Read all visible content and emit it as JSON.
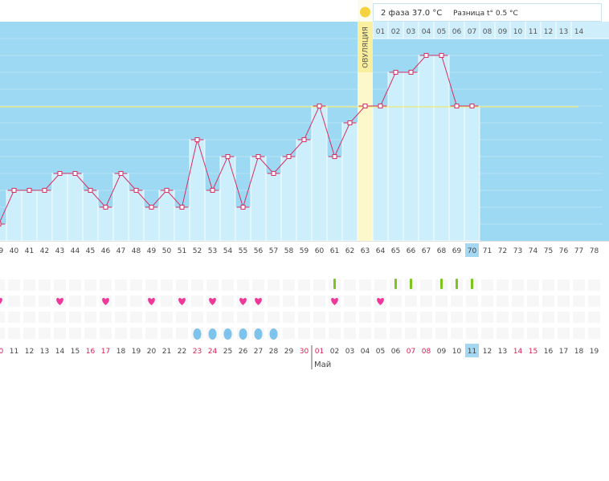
{
  "header": {
    "phase_text": "2 фаза 37.0 °C",
    "diff_text": "Разница t° 0.5 °C",
    "sun_color": "#f5d23f"
  },
  "ovulation": {
    "label": "ОВУЛЯЦИЯ",
    "column_index": 24
  },
  "month_label": "Май",
  "colors": {
    "sky": "#9dd9f3",
    "bar": "#cdeffc",
    "bar_edge": "#ffffff",
    "line": "#d62e62",
    "coverline": "#ecec7a",
    "ovulation": "#f9ef9f",
    "ovulation_light": "#fdf7cc",
    "heart": "#f0379a",
    "green": "#7dc41f",
    "drop": "#7ec3ec",
    "red_date": "#d81e55",
    "highlight": "#a3d7f2"
  },
  "chart_data": {
    "type": "line",
    "title": "",
    "x": [
      "39",
      "40",
      "41",
      "42",
      "43",
      "44",
      "45",
      "46",
      "47",
      "48",
      "49",
      "50",
      "51",
      "52",
      "53",
      "54",
      "55",
      "56",
      "57",
      "58",
      "59",
      "60",
      "61",
      "62",
      "63",
      "64",
      "65",
      "66",
      "67",
      "68",
      "69",
      "70",
      "71",
      "72",
      "73",
      "74",
      "75",
      "76",
      "77",
      "78"
    ],
    "values": [
      1,
      3,
      3,
      3,
      4,
      4,
      3,
      2,
      4,
      3,
      2,
      3,
      2,
      6,
      3,
      5,
      2,
      5,
      4,
      5,
      6,
      8,
      5,
      7,
      8,
      8,
      10,
      10,
      11,
      11,
      8,
      8,
      null,
      null,
      null,
      null,
      null,
      null,
      null,
      null
    ],
    "ylim": [
      0,
      13.3
    ],
    "grid": true,
    "coverline_value": 8,
    "highlight_index": 31,
    "top_numbers": [
      "01",
      "02",
      "03",
      "04",
      "05",
      "06",
      "07",
      "08",
      "09",
      "10",
      "11",
      "12",
      "13",
      "14"
    ],
    "dates": [
      {
        "label": "10",
        "red": true
      },
      {
        "label": "11",
        "red": false
      },
      {
        "label": "12",
        "red": false
      },
      {
        "label": "13",
        "red": false
      },
      {
        "label": "14",
        "red": false
      },
      {
        "label": "15",
        "red": false
      },
      {
        "label": "16",
        "red": true
      },
      {
        "label": "17",
        "red": true
      },
      {
        "label": "18",
        "red": false
      },
      {
        "label": "19",
        "red": false
      },
      {
        "label": "20",
        "red": false
      },
      {
        "label": "21",
        "red": false
      },
      {
        "label": "22",
        "red": false
      },
      {
        "label": "23",
        "red": true
      },
      {
        "label": "24",
        "red": true
      },
      {
        "label": "25",
        "red": false
      },
      {
        "label": "26",
        "red": false
      },
      {
        "label": "27",
        "red": false
      },
      {
        "label": "28",
        "red": false
      },
      {
        "label": "29",
        "red": false
      },
      {
        "label": "30",
        "red": true
      },
      {
        "label": "01",
        "red": true
      },
      {
        "label": "02",
        "red": false
      },
      {
        "label": "03",
        "red": false
      },
      {
        "label": "04",
        "red": false
      },
      {
        "label": "05",
        "red": false
      },
      {
        "label": "06",
        "red": false
      },
      {
        "label": "07",
        "red": true
      },
      {
        "label": "08",
        "red": true
      },
      {
        "label": "09",
        "red": false
      },
      {
        "label": "10",
        "red": false
      },
      {
        "label": "11",
        "red": false
      },
      {
        "label": "12",
        "red": false
      },
      {
        "label": "13",
        "red": false
      },
      {
        "label": "14",
        "red": true
      },
      {
        "label": "15",
        "red": true
      },
      {
        "label": "16",
        "red": false
      },
      {
        "label": "17",
        "red": false
      },
      {
        "label": "18",
        "red": false
      },
      {
        "label": "19",
        "red": false
      }
    ],
    "green_marks": [
      22,
      26,
      27,
      29,
      30,
      31
    ],
    "hearts": [
      0,
      4,
      7,
      10,
      12,
      14,
      16,
      17,
      22,
      25
    ],
    "drops": [
      13,
      14,
      15,
      16,
      17,
      18
    ]
  }
}
